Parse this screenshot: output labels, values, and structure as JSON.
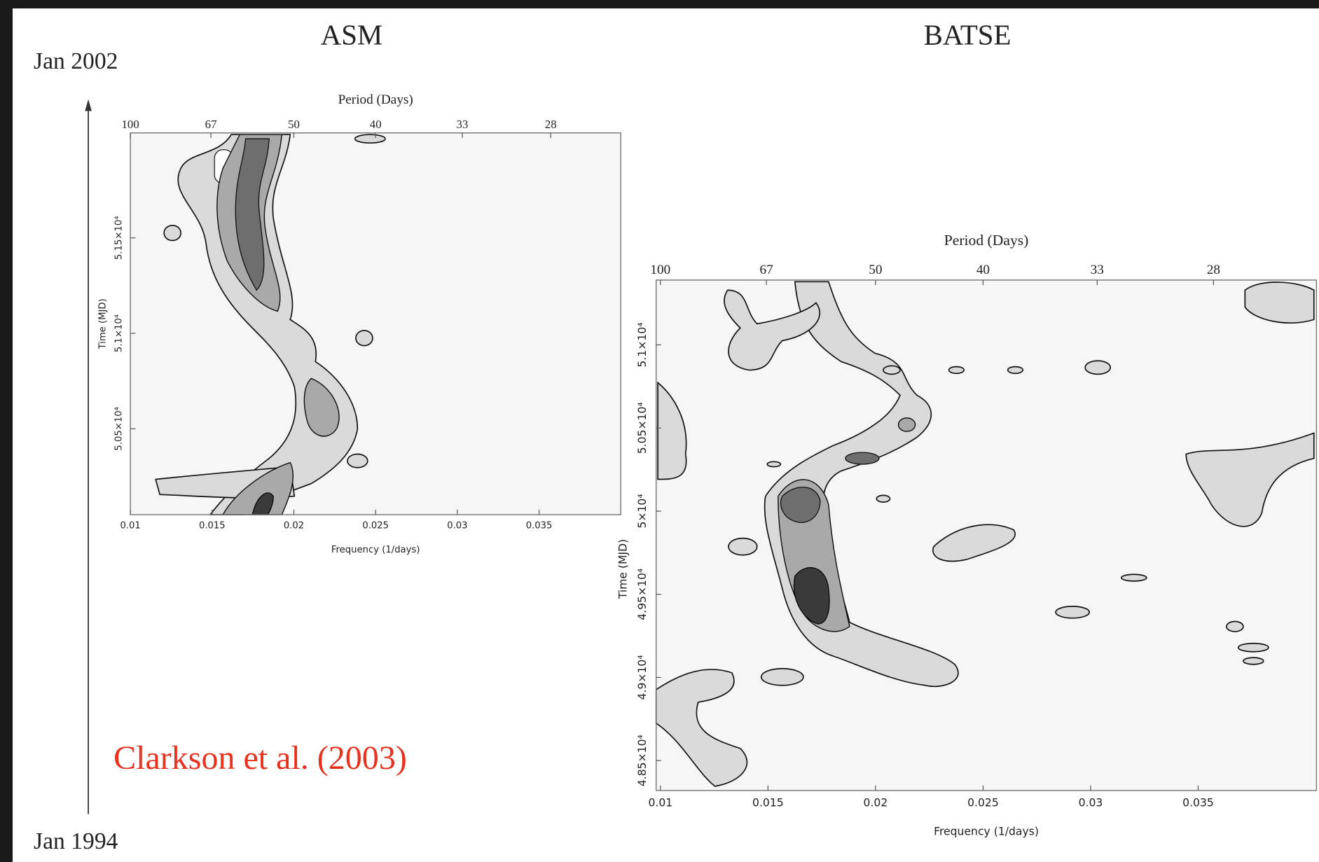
{
  "annotations": {
    "time_top": "Jan 2002",
    "time_bottom": "Jan 1994",
    "citation": "Clarkson et al. (2003)"
  },
  "chart_data": [
    {
      "type": "contour",
      "title": "ASM",
      "x_label": "Frequency (1/days)",
      "x2_label": "Period (Days)",
      "y_label": "Time (MJD)",
      "xlim": [
        0.01,
        0.04
      ],
      "xticks": [
        0.01,
        0.015,
        0.02,
        0.025,
        0.03,
        0.035
      ],
      "x2ticks": [
        100,
        67,
        50,
        40,
        33,
        28
      ],
      "ylim": [
        50050,
        52050
      ],
      "yticks": [
        {
          "value": 50500,
          "label": "5.05×10⁴"
        },
        {
          "value": 51000,
          "label": "5.1×10⁴"
        },
        {
          "value": 51500,
          "label": "5.15×10⁴"
        }
      ]
    },
    {
      "type": "contour",
      "title": "BATSE",
      "x_label": "Frequency (1/days)",
      "x2_label": "Period (Days)",
      "y_label": "Time (MJD)",
      "xlim": [
        0.0098,
        0.0405
      ],
      "xticks": [
        0.01,
        0.015,
        0.02,
        0.025,
        0.03,
        0.035
      ],
      "x2ticks": [
        100,
        67,
        50,
        40,
        33,
        28
      ],
      "ylim": [
        48320,
        51390
      ],
      "yticks": [
        {
          "value": 48500,
          "label": "4.85×10⁴"
        },
        {
          "value": 49000,
          "label": "4.9×10⁴"
        },
        {
          "value": 49500,
          "label": "4.95×10⁴"
        },
        {
          "value": 50000,
          "label": "5×10⁴"
        },
        {
          "value": 50500,
          "label": "5.05×10⁴"
        },
        {
          "value": 51000,
          "label": "5.1×10⁴"
        }
      ]
    }
  ]
}
